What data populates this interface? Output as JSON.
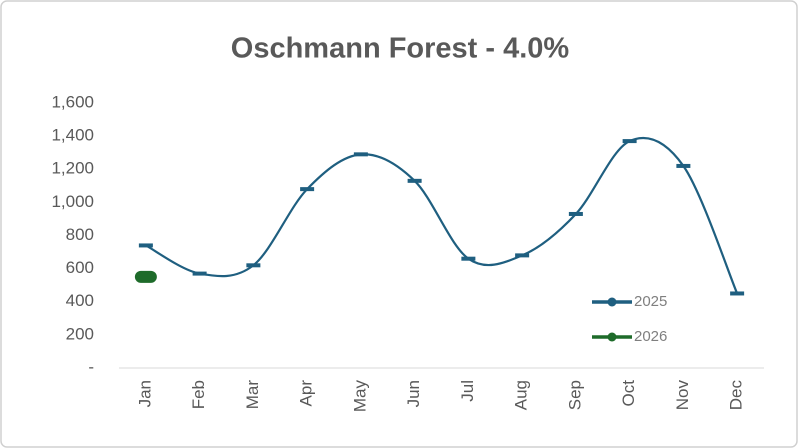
{
  "chart_data": {
    "type": "line",
    "title": "Oschmann Forest - 4.0%",
    "categories": [
      "Jan",
      "Feb",
      "Mar",
      "Apr",
      "May",
      "Jun",
      "Jul",
      "Aug",
      "Sep",
      "Oct",
      "Nov",
      "Dec"
    ],
    "series": [
      {
        "name": "2025",
        "color": "#1f5f80",
        "values": [
          740,
          570,
          620,
          1080,
          1290,
          1130,
          660,
          680,
          930,
          1370,
          1220,
          450
        ]
      },
      {
        "name": "2026",
        "color": "#1e6b2a",
        "values": [
          550,
          null,
          null,
          null,
          null,
          null,
          null,
          null,
          null,
          null,
          null,
          null
        ]
      }
    ],
    "ylim": [
      0,
      1600
    ],
    "yticks": [
      {
        "value": 0,
        "label": "-"
      },
      200,
      400,
      600,
      800,
      {
        "value": 1000,
        "label": "1,000"
      },
      {
        "value": 1200,
        "label": "1,200"
      },
      {
        "value": 1400,
        "label": "1,400"
      },
      {
        "value": 1600,
        "label": "1,600"
      }
    ],
    "smooth": true,
    "legend": "lower-right"
  }
}
